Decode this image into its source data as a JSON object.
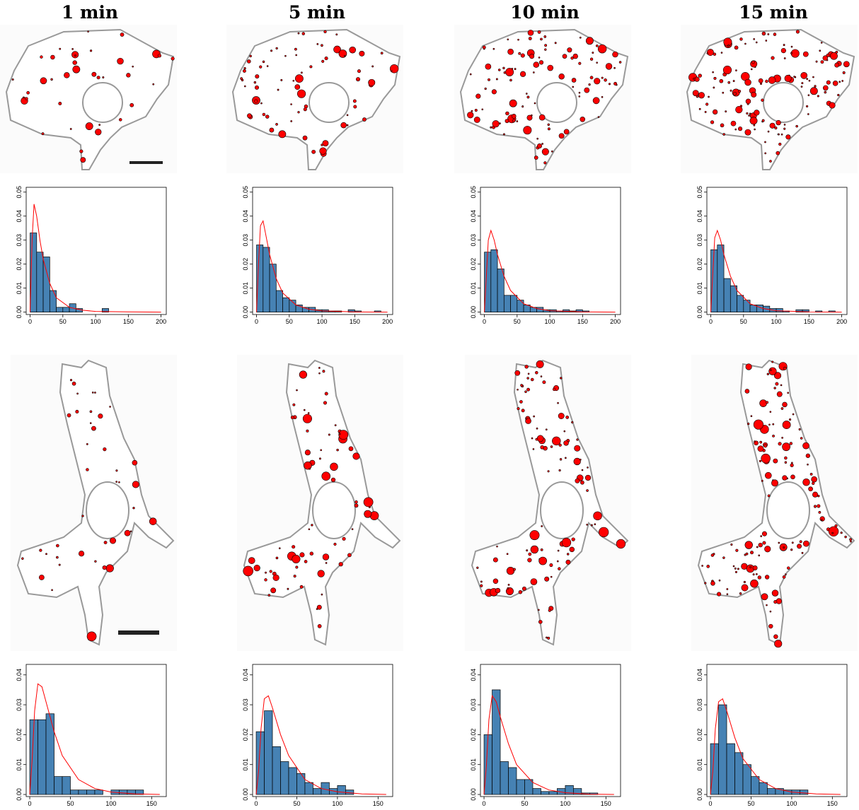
{
  "columns": [
    "1 min",
    "5 min",
    "10 min",
    "15 min"
  ],
  "chart_data": [
    {
      "type": "histogram",
      "color": "#4682b4",
      "bins": [
        0,
        10,
        20,
        30,
        40,
        50,
        60,
        70,
        80,
        90,
        100,
        110,
        120
      ],
      "values": [
        0.033,
        0.025,
        0.023,
        0.009,
        0.002,
        0.002,
        0.0035,
        0.0015,
        0,
        0,
        0,
        0.0015
      ],
      "xlim": [
        -6,
        208
      ],
      "xticks": [
        0,
        50,
        100,
        150,
        200
      ],
      "ylim": [
        -0.001,
        0.052
      ],
      "yticks": [
        {
          "value": 0,
          "label": "0.00"
        },
        0.01,
        0.02,
        0.03,
        0.04,
        0.05
      ],
      "fit": {
        "color": "#ff0000",
        "x": [
          0,
          3,
          6,
          10,
          15,
          20,
          30,
          40,
          60,
          80,
          100,
          150,
          200
        ],
        "values": [
          0,
          0.03,
          0.045,
          0.04,
          0.03,
          0.022,
          0.012,
          0.006,
          0.002,
          0.0008,
          0.0003,
          0.0001,
          0
        ]
      }
    },
    {
      "type": "histogram",
      "color": "#4682b4",
      "bins": [
        0,
        10,
        20,
        30,
        40,
        50,
        60,
        70,
        80,
        90,
        100,
        110,
        120,
        130,
        140,
        150,
        160,
        170,
        180,
        190
      ],
      "values": [
        0.028,
        0.027,
        0.02,
        0.009,
        0.006,
        0.005,
        0.003,
        0.002,
        0.002,
        0.001,
        0.001,
        0.0005,
        0.0005,
        0,
        0.001,
        0.0005,
        0,
        0,
        0.0005
      ],
      "xlim": [
        -6,
        208
      ],
      "xticks": [
        0,
        50,
        100,
        150,
        200
      ],
      "ylim": [
        -0.001,
        0.052
      ],
      "yticks": [
        {
          "value": 0,
          "label": "0.00"
        },
        0.01,
        0.02,
        0.03,
        0.04,
        0.05
      ],
      "fit": {
        "color": "#ff0000",
        "x": [
          0,
          3,
          6,
          10,
          15,
          20,
          30,
          40,
          60,
          80,
          100,
          150,
          200
        ],
        "values": [
          0,
          0.02,
          0.036,
          0.038,
          0.031,
          0.024,
          0.014,
          0.008,
          0.003,
          0.0012,
          0.0005,
          0.0001,
          0
        ]
      }
    },
    {
      "type": "histogram",
      "color": "#4682b4",
      "bins": [
        0,
        10,
        20,
        30,
        40,
        50,
        60,
        70,
        80,
        90,
        100,
        110,
        120,
        130,
        140,
        150,
        160
      ],
      "values": [
        0.025,
        0.026,
        0.018,
        0.007,
        0.007,
        0.005,
        0.003,
        0.002,
        0.002,
        0.001,
        0.001,
        0.0005,
        0.001,
        0.0005,
        0.001,
        0.0005
      ],
      "xlim": [
        -6,
        208
      ],
      "xticks": [
        0,
        50,
        100,
        150,
        200
      ],
      "ylim": [
        -0.001,
        0.052
      ],
      "yticks": [
        {
          "value": 0,
          "label": "0.00"
        },
        0.01,
        0.02,
        0.03,
        0.04,
        0.05
      ],
      "fit": {
        "color": "#ff0000",
        "x": [
          0,
          3,
          6,
          10,
          15,
          20,
          30,
          40,
          60,
          80,
          100,
          150,
          200
        ],
        "values": [
          0,
          0.015,
          0.03,
          0.034,
          0.03,
          0.024,
          0.015,
          0.009,
          0.0035,
          0.0015,
          0.0006,
          0.0001,
          0
        ]
      }
    },
    {
      "type": "histogram",
      "color": "#4682b4",
      "bins": [
        0,
        10,
        20,
        30,
        40,
        50,
        60,
        70,
        80,
        90,
        100,
        110,
        120,
        130,
        140,
        150,
        160,
        170,
        180,
        190
      ],
      "values": [
        0.026,
        0.028,
        0.014,
        0.011,
        0.007,
        0.005,
        0.003,
        0.003,
        0.0025,
        0.0015,
        0.0015,
        0.0005,
        0,
        0.001,
        0.001,
        0,
        0.0005,
        0,
        0.0005
      ],
      "xlim": [
        -6,
        208
      ],
      "xticks": [
        0,
        50,
        100,
        150,
        200
      ],
      "ylim": [
        -0.001,
        0.052
      ],
      "yticks": [
        {
          "value": 0,
          "label": "0.00"
        },
        0.01,
        0.02,
        0.03,
        0.04,
        0.05
      ],
      "fit": {
        "color": "#ff0000",
        "x": [
          0,
          3,
          6,
          10,
          15,
          20,
          30,
          40,
          60,
          80,
          100,
          150,
          200
        ],
        "values": [
          0,
          0.016,
          0.031,
          0.034,
          0.03,
          0.024,
          0.015,
          0.009,
          0.0035,
          0.0015,
          0.0006,
          0.0001,
          0
        ]
      }
    },
    {
      "type": "histogram",
      "color": "#4682b4",
      "bins": [
        0,
        10,
        20,
        30,
        40,
        50,
        60,
        70,
        80,
        90,
        100,
        110,
        120,
        130,
        140
      ],
      "values": [
        0.025,
        0.025,
        0.027,
        0.006,
        0.006,
        0.0015,
        0.0015,
        0.0015,
        0.0015,
        0,
        0.0015,
        0.0015,
        0.0015,
        0.0015
      ],
      "xlim": [
        -4.4,
        168
      ],
      "xticks": [
        0,
        50,
        100,
        150
      ],
      "ylim": [
        -0.0007,
        0.0435
      ],
      "yticks": [
        {
          "value": 0,
          "label": "0.00"
        },
        0.01,
        0.02,
        0.03,
        0.04
      ],
      "fit": {
        "color": "#ff0000",
        "x": [
          0,
          3,
          6,
          10,
          15,
          20,
          30,
          40,
          60,
          80,
          100,
          130,
          160
        ],
        "values": [
          0,
          0.012,
          0.028,
          0.037,
          0.036,
          0.031,
          0.021,
          0.013,
          0.005,
          0.002,
          0.0008,
          0.0002,
          0
        ]
      }
    },
    {
      "type": "histogram",
      "color": "#4682b4",
      "bins": [
        0,
        10,
        20,
        30,
        40,
        50,
        60,
        70,
        80,
        90,
        100,
        110,
        120
      ],
      "values": [
        0.021,
        0.028,
        0.016,
        0.011,
        0.009,
        0.007,
        0.004,
        0.002,
        0.004,
        0.002,
        0.003,
        0.0015
      ],
      "xlim": [
        -4.4,
        168
      ],
      "xticks": [
        0,
        50,
        100,
        150
      ],
      "ylim": [
        -0.0007,
        0.0435
      ],
      "yticks": [
        {
          "value": 0,
          "label": "0.00"
        },
        0.01,
        0.02,
        0.03,
        0.04
      ],
      "fit": {
        "color": "#ff0000",
        "x": [
          0,
          3,
          6,
          10,
          15,
          20,
          30,
          40,
          60,
          80,
          100,
          130,
          160
        ],
        "values": [
          0,
          0.008,
          0.022,
          0.032,
          0.033,
          0.029,
          0.02,
          0.013,
          0.005,
          0.002,
          0.0009,
          0.0002,
          0
        ]
      }
    },
    {
      "type": "histogram",
      "color": "#4682b4",
      "bins": [
        0,
        10,
        20,
        30,
        40,
        50,
        60,
        70,
        80,
        90,
        100,
        110,
        120,
        130,
        140
      ],
      "values": [
        0.02,
        0.035,
        0.011,
        0.009,
        0.005,
        0.005,
        0.002,
        0.001,
        0.001,
        0.002,
        0.003,
        0.002,
        0.0005,
        0.0005
      ],
      "xlim": [
        -4.4,
        168
      ],
      "xticks": [
        0,
        50,
        100,
        150
      ],
      "ylim": [
        -0.0007,
        0.0435
      ],
      "yticks": [
        {
          "value": 0,
          "label": "0.00"
        },
        0.01,
        0.02,
        0.03,
        0.04
      ],
      "fit": {
        "color": "#ff0000",
        "x": [
          0,
          3,
          6,
          10,
          15,
          20,
          30,
          40,
          60,
          80,
          100,
          130,
          160
        ],
        "values": [
          0,
          0.01,
          0.025,
          0.033,
          0.031,
          0.026,
          0.017,
          0.01,
          0.004,
          0.0015,
          0.0006,
          0.0001,
          0
        ]
      }
    },
    {
      "type": "histogram",
      "color": "#4682b4",
      "bins": [
        0,
        10,
        20,
        30,
        40,
        50,
        60,
        70,
        80,
        90,
        100,
        110,
        120
      ],
      "values": [
        0.017,
        0.03,
        0.017,
        0.014,
        0.01,
        0.006,
        0.004,
        0.002,
        0.002,
        0.0015,
        0.0015,
        0.0015
      ],
      "xlim": [
        -4.4,
        168
      ],
      "xticks": [
        0,
        50,
        100,
        150
      ],
      "ylim": [
        -0.0007,
        0.0435
      ],
      "yticks": [
        {
          "value": 0,
          "label": "0.00"
        },
        0.01,
        0.02,
        0.03,
        0.04
      ],
      "fit": {
        "color": "#ff0000",
        "x": [
          0,
          3,
          6,
          10,
          15,
          20,
          30,
          40,
          60,
          80,
          100,
          130,
          160
        ],
        "values": [
          0,
          0.008,
          0.022,
          0.031,
          0.032,
          0.028,
          0.019,
          0.012,
          0.005,
          0.002,
          0.0008,
          0.0002,
          0
        ]
      }
    }
  ]
}
